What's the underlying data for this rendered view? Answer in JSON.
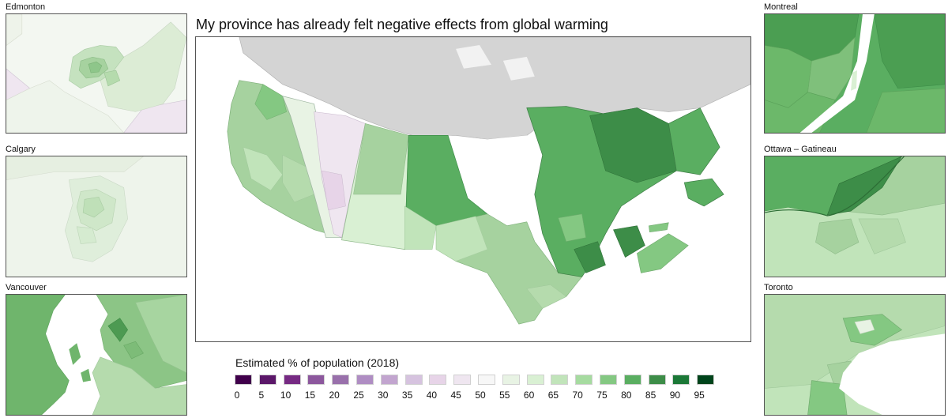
{
  "title": "My province has already felt negative effects from global warming",
  "insets": {
    "edmonton": "Edmonton",
    "calgary": "Calgary",
    "vancouver": "Vancouver",
    "montreal": "Montreal",
    "ottawa": "Ottawa – Gatineau",
    "toronto": "Toronto"
  },
  "legend": {
    "title": "Estimated % of population (2018)",
    "bins": [
      {
        "label": "0",
        "color": "#40004b"
      },
      {
        "label": "5",
        "color": "#5b1769"
      },
      {
        "label": "10",
        "color": "#762a83"
      },
      {
        "label": "15",
        "color": "#8c579d"
      },
      {
        "label": "20",
        "color": "#9970ab"
      },
      {
        "label": "25",
        "color": "#af8dc3"
      },
      {
        "label": "30",
        "color": "#c2a5cf"
      },
      {
        "label": "35",
        "color": "#d6c3df"
      },
      {
        "label": "40",
        "color": "#e7d4e8"
      },
      {
        "label": "45",
        "color": "#efe6f0"
      },
      {
        "label": "50",
        "color": "#f7f7f7"
      },
      {
        "label": "55",
        "color": "#e8f3e4"
      },
      {
        "label": "60",
        "color": "#d9f0d3"
      },
      {
        "label": "65",
        "color": "#c1e4ba"
      },
      {
        "label": "70",
        "color": "#a6dba0"
      },
      {
        "label": "75",
        "color": "#84c882"
      },
      {
        "label": "80",
        "color": "#5aae61"
      },
      {
        "label": "85",
        "color": "#3d8d48"
      },
      {
        "label": "90",
        "color": "#1b7837"
      },
      {
        "label": "95",
        "color": "#00441b"
      }
    ]
  },
  "colors": {
    "no_data": "#d4d4d4",
    "water": "#ffffff",
    "border": "#555555"
  }
}
